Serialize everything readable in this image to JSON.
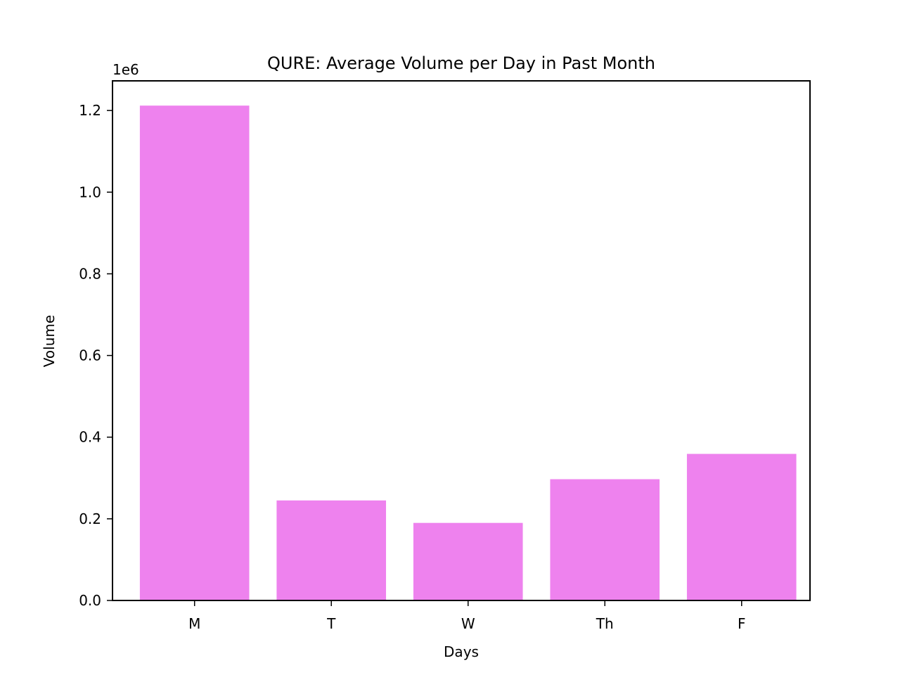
{
  "chart_data": {
    "type": "bar",
    "title": "QURE: Average Volume per Day in Past Month",
    "xlabel": "Days",
    "ylabel": "Volume",
    "offset_label": "1e6",
    "categories": [
      "M",
      "T",
      "W",
      "Th",
      "F"
    ],
    "values": [
      1212000,
      245000,
      190000,
      297000,
      359000
    ],
    "ylim": [
      0,
      1272600
    ],
    "yticks": [
      0.0,
      0.2,
      0.4,
      0.6,
      0.8,
      1.0,
      1.2
    ],
    "ytick_labels": [
      "0.0",
      "0.2",
      "0.4",
      "0.6",
      "0.8",
      "1.0",
      "1.2"
    ],
    "ytick_scale": 1000000,
    "bar_color": "#ee82ee",
    "grid": false,
    "legend": "none"
  }
}
